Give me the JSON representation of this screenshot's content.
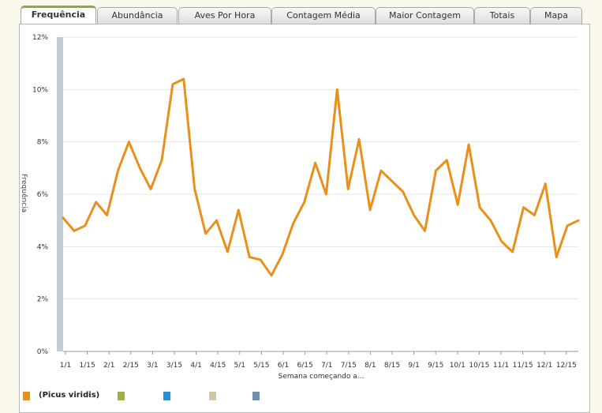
{
  "tabs": [
    {
      "label": "Frequência",
      "active": true
    },
    {
      "label": "Abundância",
      "active": false
    },
    {
      "label": "Aves Por Hora",
      "active": false
    },
    {
      "label": "Contagem Média",
      "active": false
    },
    {
      "label": "Maior Contagem",
      "active": false
    },
    {
      "label": "Totais",
      "active": false
    },
    {
      "label": "Mapa",
      "active": false
    }
  ],
  "chart_data": {
    "type": "line",
    "xlabel": "Semana começando a...",
    "ylabel": "Frequência",
    "ylim": [
      0,
      12
    ],
    "y_ticks": [
      "0%",
      "2%",
      "4%",
      "6%",
      "8%",
      "10%",
      "12%"
    ],
    "x_tick_labels": [
      "1/1",
      "1/15",
      "2/1",
      "2/15",
      "3/1",
      "3/15",
      "4/1",
      "4/15",
      "5/1",
      "5/15",
      "6/1",
      "6/15",
      "7/1",
      "7/15",
      "8/1",
      "8/15",
      "9/1",
      "9/15",
      "10/1",
      "10/15",
      "11/1",
      "11/15",
      "12/1",
      "12/15"
    ],
    "grid": true,
    "series": [
      {
        "name": "(Picus viridis)",
        "color": "#e8901a",
        "values": [
          5.1,
          4.6,
          4.8,
          5.7,
          5.2,
          6.9,
          8.0,
          7.0,
          6.2,
          7.3,
          10.2,
          10.4,
          6.2,
          4.5,
          5.0,
          3.8,
          5.4,
          3.6,
          3.5,
          2.9,
          3.7,
          4.9,
          5.7,
          7.2,
          6.0,
          10.0,
          6.2,
          8.1,
          5.4,
          6.9,
          6.5,
          6.1,
          5.2,
          4.6,
          6.9,
          7.3,
          5.6,
          7.9,
          5.5,
          5.0,
          4.2,
          3.8,
          5.5,
          5.2,
          6.4,
          3.6,
          4.8,
          5.0
        ]
      }
    ]
  },
  "legend": [
    {
      "label": "(Picus viridis)",
      "color": "#e8901a"
    },
    {
      "label": "",
      "color": "#9ab240"
    },
    {
      "label": "",
      "color": "#2d8fd6"
    },
    {
      "label": "",
      "color": "#cfc8a0"
    },
    {
      "label": "",
      "color": "#6f8fa8"
    }
  ]
}
